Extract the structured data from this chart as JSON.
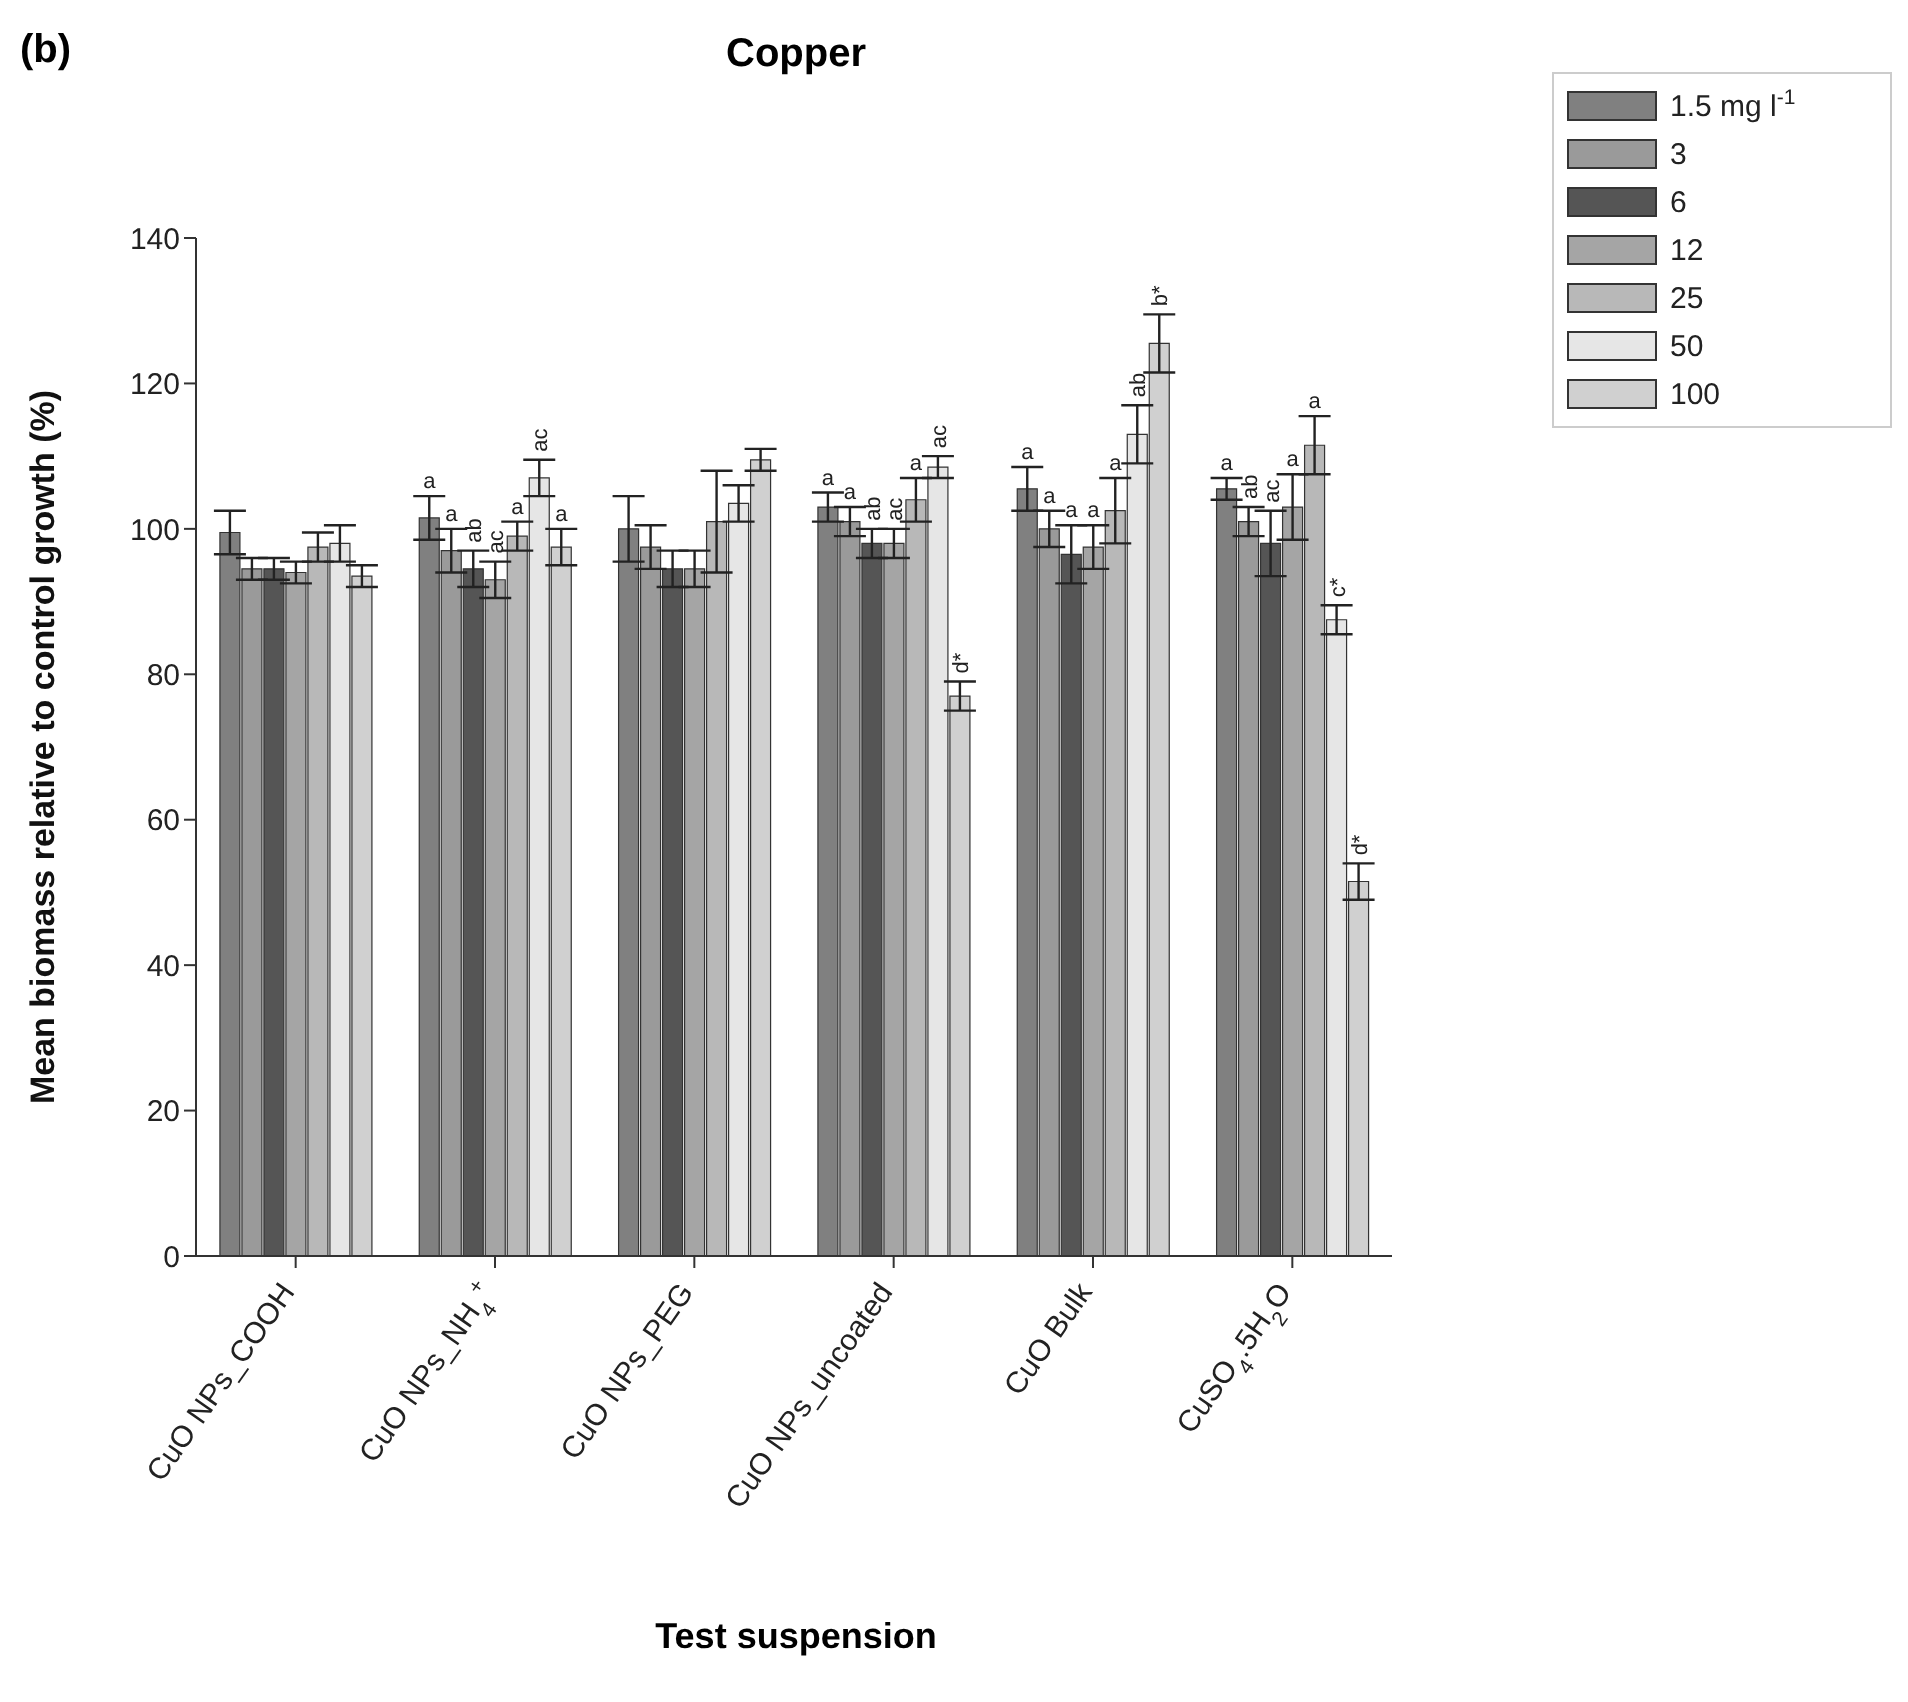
{
  "chart_data": {
    "type": "bar",
    "title": "Copper",
    "xlabel": "Test suspension",
    "ylabel": "Mean biomass relative to control growth (%)",
    "annotations": [
      "(b)"
    ],
    "categories": [
      "CuO NPs_COOH",
      "CuO NPs_NH$_{4}$$^{+}$",
      "CuO NPs_PEG",
      "CuO NPs_uncoated",
      "CuO Bulk",
      "CuSO$_{4}$.5H$_{2}$O"
    ],
    "series": [
      {
        "name": "1.5 mg l$^{-1}$",
        "color": "#808080",
        "values": [
          99.5,
          101.5,
          100,
          103,
          105.5,
          105.5
        ],
        "errors": [
          3,
          3,
          4.5,
          2,
          3,
          1.5
        ],
        "value_labels": [
          null,
          "a",
          null,
          "a",
          "a",
          "a"
        ]
      },
      {
        "name": "3",
        "color": "#9a9a9a",
        "values": [
          94.5,
          97,
          97.5,
          101,
          100,
          101
        ],
        "errors": [
          1.5,
          3,
          3,
          2,
          2.5,
          2
        ],
        "value_labels": [
          null,
          "a",
          null,
          "a",
          "a",
          "ab"
        ]
      },
      {
        "name": "6",
        "color": "#555555",
        "values": [
          94.5,
          94.5,
          94.5,
          98,
          96.5,
          98
        ],
        "errors": [
          1.5,
          2.5,
          2.5,
          2,
          4,
          4.5
        ],
        "value_labels": [
          null,
          "ab",
          null,
          "ab",
          "a",
          "ac"
        ]
      },
      {
        "name": "12",
        "color": "#a5a5a5",
        "values": [
          94,
          93,
          94.5,
          98,
          97.5,
          103
        ],
        "errors": [
          1.5,
          2.5,
          2.5,
          2,
          3,
          4.5
        ],
        "value_labels": [
          null,
          "ac",
          null,
          "ac",
          "a",
          "a"
        ]
      },
      {
        "name": "25",
        "color": "#b8b8b8",
        "values": [
          97.5,
          99,
          101,
          104,
          102.5,
          111.5
        ],
        "errors": [
          2,
          2,
          7,
          3,
          4.5,
          4
        ],
        "value_labels": [
          null,
          "a",
          null,
          "a",
          "a",
          "a"
        ]
      },
      {
        "name": "50",
        "color": "#e6e6e6",
        "values": [
          98,
          107,
          103.5,
          108.5,
          113,
          87.5
        ],
        "errors": [
          2.5,
          2.5,
          2.5,
          1.5,
          4,
          2
        ],
        "value_labels": [
          null,
          "ac",
          null,
          "ac",
          "ab",
          "c*"
        ]
      },
      {
        "name": "100",
        "color": "#d0d0d0",
        "values": [
          93.5,
          97.5,
          109.5,
          77,
          125.5,
          51.5
        ],
        "errors": [
          1.5,
          2.5,
          1.5,
          2,
          4,
          2.5
        ],
        "value_labels": [
          null,
          "a",
          null,
          "d*",
          "b*",
          "d*"
        ]
      }
    ],
    "ylim": [
      0,
      140
    ],
    "yticks": [
      0,
      20,
      40,
      60,
      80,
      100,
      120,
      140
    ],
    "grid": false,
    "legend": "top right"
  }
}
